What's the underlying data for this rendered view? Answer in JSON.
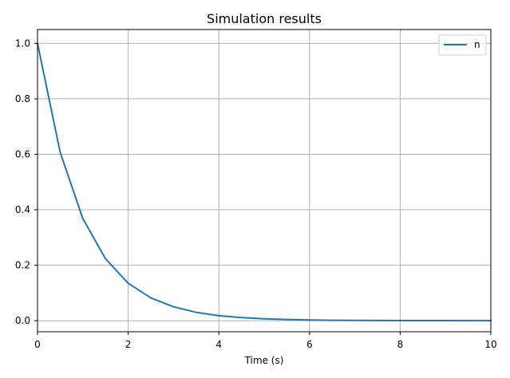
{
  "chart_data": {
    "type": "line",
    "title": "Simulation results",
    "xlabel": "Time (s)",
    "ylabel": "",
    "xlim": [
      0,
      10
    ],
    "ylim": [
      -0.04,
      1.05
    ],
    "xticks": [
      0,
      2,
      4,
      6,
      8,
      10
    ],
    "yticks": [
      0.0,
      0.2,
      0.4,
      0.6,
      0.8,
      1.0
    ],
    "xtick_labels": [
      "0",
      "2",
      "4",
      "6",
      "8",
      "10"
    ],
    "ytick_labels": [
      "0.0",
      "0.2",
      "0.4",
      "0.6",
      "0.8",
      "1.0"
    ],
    "grid": true,
    "legend": {
      "placement": "top-right"
    },
    "series": [
      {
        "name": "n",
        "color": "#1f77b4",
        "x": [
          0,
          0.5,
          1,
          1.5,
          2,
          2.5,
          3,
          3.5,
          4,
          4.5,
          5,
          5.5,
          6,
          6.5,
          7,
          7.5,
          8,
          8.5,
          9,
          9.5,
          10
        ],
        "y": [
          1.0,
          0.607,
          0.368,
          0.223,
          0.135,
          0.082,
          0.05,
          0.03,
          0.018,
          0.011,
          0.0067,
          0.0041,
          0.0025,
          0.0015,
          0.0009,
          0.00055,
          0.00034,
          0.0002,
          0.00012,
          7e-05,
          5e-05
        ]
      }
    ]
  }
}
